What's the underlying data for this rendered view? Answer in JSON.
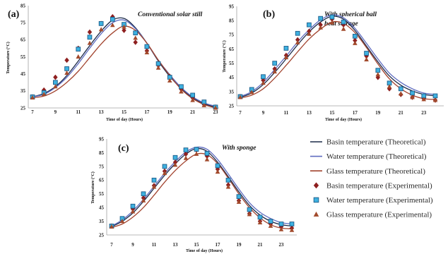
{
  "legend": {
    "position": "bottom-right",
    "items": [
      {
        "label": "Basin temperature (Theoretical)",
        "symbol": "line",
        "color": "#1b2a49"
      },
      {
        "label": "Water temperature (Theoretical)",
        "symbol": "line",
        "color": "#5f6cc0"
      },
      {
        "label": "Glass temperature (Theoretical)",
        "symbol": "line",
        "color": "#a2432e"
      },
      {
        "label": "Basin temperature (Experimental)",
        "symbol": "diamond",
        "color": "#8e1f1f"
      },
      {
        "label": "Water temperature (Experimental)",
        "symbol": "square",
        "color": "#3eb1e0",
        "edge_color": "#1c5b88"
      },
      {
        "label": "Glass temperature (Experimental)",
        "symbol": "triangle",
        "color": "#a24a2c"
      }
    ]
  },
  "chart_data": [
    {
      "type": "line",
      "panel_label": "(a)",
      "title_lines": [
        "Conventional solar still"
      ],
      "xlabel": "Time of day (Hours)",
      "ylabel": "Temperature (°C)",
      "xlim": [
        7,
        23
      ],
      "ylim": [
        25,
        85
      ],
      "xticks": [
        7,
        9,
        11,
        13,
        15,
        17,
        19,
        21,
        23
      ],
      "yticks": [
        25,
        35,
        45,
        55,
        65,
        75,
        85
      ],
      "grid": false,
      "x": [
        7,
        8,
        9,
        10,
        11,
        12,
        13,
        14,
        15,
        16,
        17,
        18,
        19,
        20,
        21,
        22,
        23
      ],
      "series": [
        {
          "name": "Basin temperature (Theoretical)",
          "style": "line",
          "color": "#1b2a49",
          "values": [
            31.5,
            33.5,
            37.5,
            44,
            52.5,
            61.5,
            70,
            76.5,
            77.5,
            72,
            63,
            52.5,
            43.5,
            36.5,
            31,
            27.5,
            25.5
          ]
        },
        {
          "name": "Water temperature (Theoretical)",
          "style": "line",
          "color": "#5f6cc0",
          "values": [
            31.5,
            33,
            37,
            43,
            51,
            60,
            68.5,
            75,
            76.5,
            71.5,
            63,
            53,
            44.5,
            37,
            31.5,
            28,
            26
          ]
        },
        {
          "name": "Glass temperature (Theoretical)",
          "style": "line",
          "color": "#a2432e",
          "values": [
            31,
            32,
            35,
            40,
            46.5,
            54.5,
            62.5,
            69,
            73,
            70.5,
            63,
            53,
            44,
            36,
            30.5,
            27,
            25
          ]
        },
        {
          "name": "Basin temperature (Experimental)",
          "style": "marker",
          "marker": "diamond",
          "color": "#8e1f1f",
          "values": [
            31.5,
            35.5,
            43,
            53,
            60,
            69.5,
            74.5,
            78.5,
            70.5,
            63.5,
            58.5,
            50,
            43.5,
            36,
            31,
            27,
            25.5
          ]
        },
        {
          "name": "Water temperature (Experimental)",
          "style": "marker",
          "marker": "square",
          "color": "#3eb1e0",
          "edge_color": "#1c5b88",
          "values": [
            31.5,
            34,
            40,
            48,
            59.5,
            66.5,
            74.5,
            77,
            74,
            69,
            61,
            51,
            43,
            37.5,
            32.5,
            28.5,
            25.5
          ]
        },
        {
          "name": "Glass temperature (Experimental)",
          "style": "marker",
          "marker": "triangle",
          "color": "#a24a2c",
          "values": [
            31,
            33,
            37.5,
            45.5,
            55,
            63,
            71,
            73.5,
            72.5,
            66,
            57.5,
            48.5,
            41,
            34.5,
            29.5,
            26.5,
            25
          ]
        }
      ]
    },
    {
      "type": "line",
      "panel_label": "(b)",
      "title_lines": [
        "With spherical ball",
        "heat storage"
      ],
      "xlabel": "Time of day (Hours)",
      "ylabel": "Temperature (°C)",
      "xlim": [
        7,
        24
      ],
      "ylim": [
        25,
        95
      ],
      "xticks": [
        7,
        9,
        11,
        13,
        15,
        17,
        19,
        21,
        23
      ],
      "yticks": [
        25,
        35,
        45,
        55,
        65,
        75,
        85,
        95
      ],
      "grid": false,
      "x": [
        7,
        8,
        9,
        10,
        11,
        12,
        13,
        14,
        15,
        16,
        17,
        18,
        19,
        20,
        21,
        22,
        23,
        24
      ],
      "series": [
        {
          "name": "Basin temperature (Theoretical)",
          "style": "line",
          "color": "#1b2a49",
          "values": [
            31,
            34,
            40,
            48.5,
            58,
            68,
            77,
            84,
            88,
            86,
            78,
            67,
            56,
            46,
            39.5,
            35.5,
            33,
            32
          ]
        },
        {
          "name": "Water temperature (Theoretical)",
          "style": "line",
          "color": "#5f6cc0",
          "values": [
            31.5,
            35,
            41.5,
            50.5,
            60,
            70,
            78.5,
            85.5,
            89,
            87,
            79.5,
            69,
            58,
            48,
            41.5,
            37,
            34,
            33
          ]
        },
        {
          "name": "Glass temperature (Theoretical)",
          "style": "line",
          "color": "#a2432e",
          "values": [
            30.5,
            32.5,
            37,
            44.5,
            53.5,
            63,
            72,
            79,
            84,
            83,
            76.5,
            66,
            54.5,
            44,
            37,
            32.5,
            30,
            29.5
          ]
        },
        {
          "name": "Basin temperature (Experimental)",
          "style": "marker",
          "marker": "diamond",
          "color": "#8e1f1f",
          "values": [
            31.5,
            35.5,
            43,
            51,
            60.5,
            71.5,
            77.5,
            82,
            86,
            82,
            71,
            60,
            45,
            37,
            33,
            31,
            30,
            29
          ]
        },
        {
          "name": "Water temperature (Experimental)",
          "style": "marker",
          "marker": "square",
          "color": "#3eb1e0",
          "edge_color": "#1c5b88",
          "values": [
            31.5,
            36.5,
            45.5,
            55,
            65.5,
            76,
            82,
            86.5,
            87.5,
            84,
            74,
            62,
            50,
            41,
            37,
            34,
            32,
            32
          ]
        },
        {
          "name": "Glass temperature (Experimental)",
          "style": "marker",
          "marker": "triangle",
          "color": "#a24a2c",
          "values": [
            31,
            34.5,
            41,
            49,
            59,
            69.5,
            75.5,
            80,
            83.5,
            79,
            69,
            57.5,
            47,
            38.5,
            33.5,
            31,
            29.5,
            29
          ]
        }
      ]
    },
    {
      "type": "line",
      "panel_label": "(c)",
      "title_lines": [
        "With sponge"
      ],
      "xlabel": "Time of day (Hours)",
      "ylabel": "Temperature (°C)",
      "xlim": [
        7,
        24
      ],
      "ylim": [
        25,
        95
      ],
      "xticks": [
        7,
        9,
        11,
        13,
        15,
        17,
        19,
        21,
        23
      ],
      "yticks": [
        25,
        35,
        45,
        55,
        65,
        75,
        85,
        95
      ],
      "grid": false,
      "x": [
        7,
        8,
        9,
        10,
        11,
        12,
        13,
        14,
        15,
        16,
        17,
        18,
        19,
        20,
        21,
        22,
        23,
        24
      ],
      "series": [
        {
          "name": "Basin temperature (Theoretical)",
          "style": "line",
          "color": "#1b2a49",
          "values": [
            31,
            35,
            41,
            49.5,
            59,
            68.5,
            77,
            84,
            88,
            86,
            78,
            67.5,
            56.5,
            46.5,
            39.5,
            35,
            32.5,
            31.5
          ]
        },
        {
          "name": "Water temperature (Theoretical)",
          "style": "line",
          "color": "#5f6cc0",
          "values": [
            31.5,
            36,
            42.5,
            51,
            60.5,
            70,
            78.5,
            85.5,
            89,
            87.5,
            80,
            69.5,
            58.5,
            48.5,
            41.5,
            37,
            34,
            33
          ]
        },
        {
          "name": "Glass temperature (Theoretical)",
          "style": "line",
          "color": "#a2432e",
          "values": [
            30.5,
            33,
            38,
            45,
            54,
            63.5,
            72,
            79,
            84,
            83.5,
            77,
            66.5,
            55,
            45,
            37.5,
            32.5,
            30,
            29.5
          ]
        },
        {
          "name": "Basin temperature (Experimental)",
          "style": "marker",
          "marker": "diamond",
          "color": "#8e1f1f",
          "values": [
            31.5,
            36.5,
            44,
            52,
            61,
            71.5,
            78,
            84,
            87,
            82.5,
            73,
            61.5,
            50,
            40.5,
            35,
            33,
            31,
            30
          ]
        },
        {
          "name": "Water temperature (Experimental)",
          "style": "marker",
          "marker": "square",
          "color": "#3eb1e0",
          "edge_color": "#1c5b88",
          "values": [
            31.5,
            37,
            46,
            55,
            65,
            75,
            81.5,
            87,
            87.5,
            84.5,
            75.5,
            65,
            53,
            43.5,
            38,
            35,
            33,
            33
          ]
        },
        {
          "name": "Glass temperature (Experimental)",
          "style": "marker",
          "marker": "triangle",
          "color": "#a24a2c",
          "values": [
            31,
            35,
            42,
            50,
            60,
            70,
            76,
            81,
            84,
            80,
            71,
            60,
            49,
            40,
            34,
            31.5,
            29,
            28.5
          ]
        }
      ]
    }
  ]
}
